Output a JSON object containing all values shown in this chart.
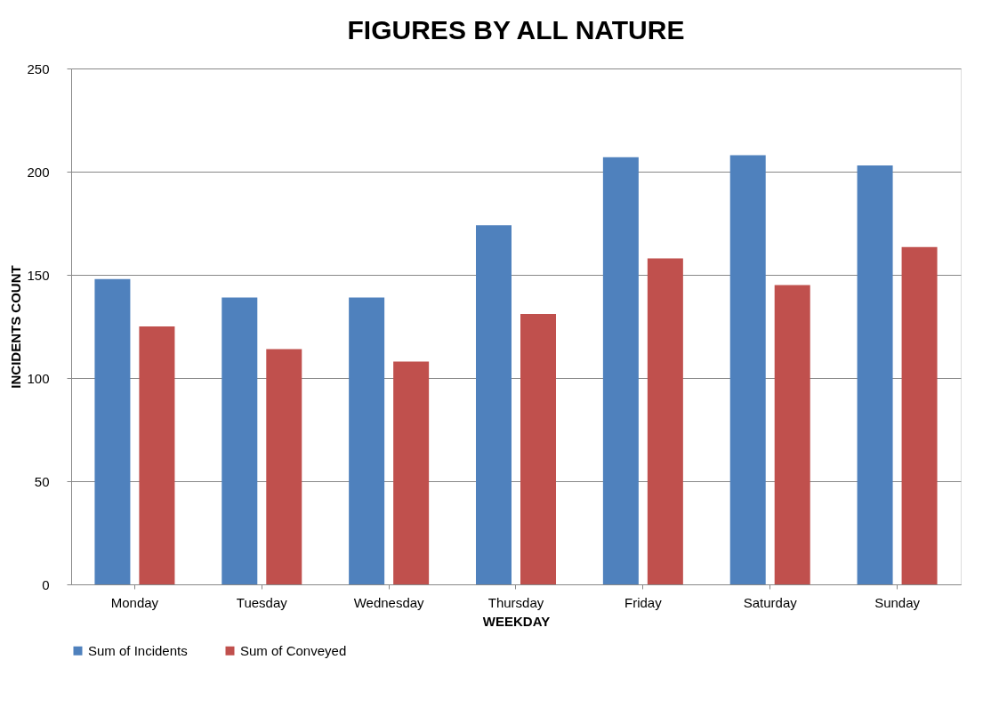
{
  "chart_data": {
    "type": "bar",
    "title": "FIGURES BY ALL NATURE",
    "xlabel": "WEEKDAY",
    "ylabel": "INCIDENTS COUNT",
    "categories": [
      "Monday",
      "Tuesday",
      "Wednesday",
      "Thursday",
      "Friday",
      "Saturday",
      "Sunday"
    ],
    "series": [
      {
        "name": "Sum of Incidents",
        "color": "#4f81bd",
        "values": [
          148,
          139,
          139,
          174,
          207,
          208,
          203
        ]
      },
      {
        "name": "Sum of Conveyed",
        "color": "#c0504d",
        "values": [
          125,
          114,
          108,
          131,
          158,
          145,
          163.5
        ]
      }
    ],
    "ylim": [
      0,
      250
    ],
    "yticks": [
      0,
      50,
      100,
      150,
      200,
      250
    ],
    "grid": "y",
    "legend": "bottom"
  }
}
